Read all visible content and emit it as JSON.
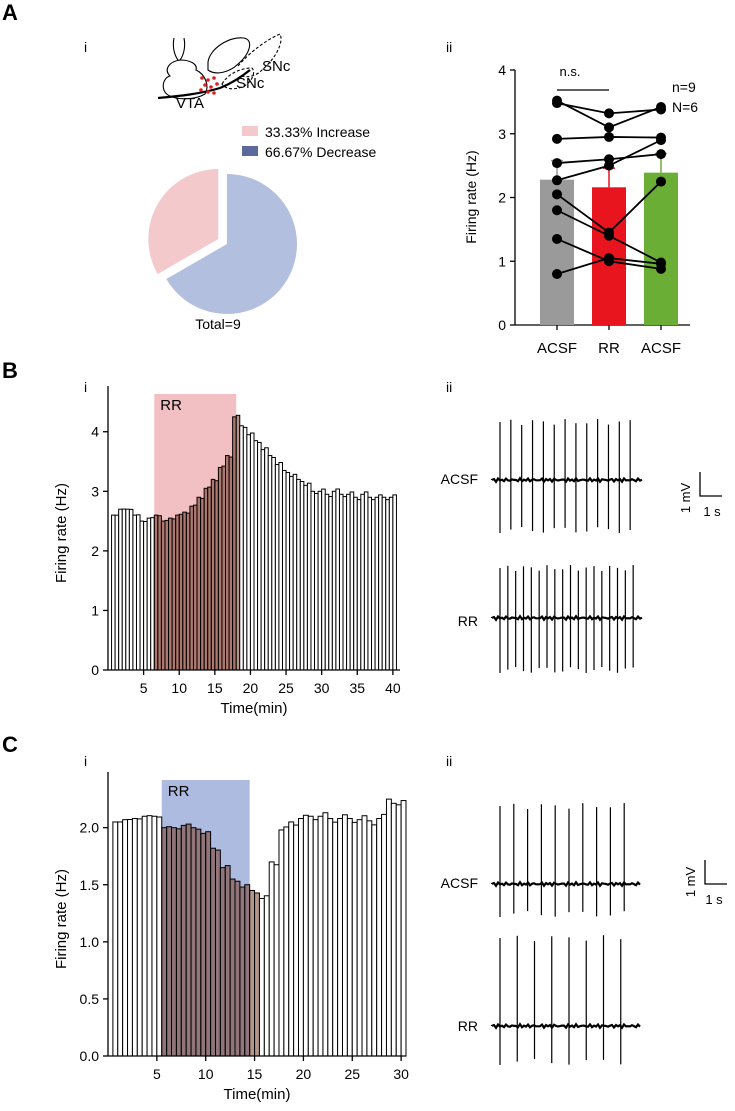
{
  "panels": {
    "A": {
      "letter": "A",
      "sub_i": "i",
      "sub_ii": "ii"
    },
    "B": {
      "letter": "B",
      "sub_i": "i",
      "sub_ii": "ii"
    },
    "C": {
      "letter": "C",
      "sub_i": "i",
      "sub_ii": "ii"
    }
  },
  "brain": {
    "vta": "VTA",
    "snc1": "SNc",
    "snc2": "SNc"
  },
  "colors": {
    "increase": "#f4c9cc",
    "decrease": "#b3bfdf",
    "acsf": "#9a9a9a",
    "rr": "#e8141e",
    "acsf2": "#6aae35",
    "shade_b": "#f2c0c3",
    "shade_c": "#aebbe0"
  },
  "traces": {
    "B": {
      "acsf_label": "ACSF",
      "rr_label": "RR",
      "scale_v": "1 mV",
      "scale_t": "1 s",
      "acsf_spikes": 13,
      "rr_spikes": 18
    },
    "C": {
      "acsf_label": "ACSF",
      "rr_label": "RR",
      "scale_v": "1 mV",
      "scale_t": "1 s",
      "acsf_spikes": 10,
      "rr_spikes": 8
    }
  },
  "chart_data": [
    {
      "id": "A-i",
      "type": "pie",
      "labels": [
        "Increase",
        "Decrease"
      ],
      "values": [
        33.33,
        66.67
      ],
      "legend": [
        "33.33%  Increase",
        "66.67%  Decrease"
      ],
      "footer": "Total=9"
    },
    {
      "id": "A-ii",
      "type": "bar",
      "categories": [
        "ACSF",
        "RR",
        "ACSF"
      ],
      "values": [
        2.28,
        2.16,
        2.39
      ],
      "errors": [
        0.3,
        0.3,
        0.3
      ],
      "individual": [
        [
          3.52,
          3.1,
          3.42
        ],
        [
          3.48,
          3.32,
          3.38
        ],
        [
          2.92,
          2.95,
          2.94
        ],
        [
          2.54,
          2.6,
          2.68
        ],
        [
          2.27,
          2.5,
          2.9
        ],
        [
          2.05,
          1.45,
          2.25
        ],
        [
          1.8,
          1.4,
          0.98
        ],
        [
          1.35,
          1.0,
          0.88
        ],
        [
          0.8,
          1.05,
          0.96
        ]
      ],
      "significance": "n.s.",
      "annotation": [
        "n=9",
        "N=6"
      ],
      "ylabel": "Firing rate (Hz)",
      "ylim": [
        0,
        4
      ],
      "yticks": [
        "0",
        "1",
        "2",
        "3",
        "4"
      ]
    },
    {
      "id": "B-i",
      "type": "bar",
      "x": [
        1,
        2,
        3,
        4,
        5,
        6,
        7,
        8,
        9,
        10,
        11,
        12,
        13,
        14,
        15,
        16,
        17,
        18,
        19,
        20,
        21,
        22,
        23,
        24,
        25,
        26,
        27,
        28,
        29,
        30,
        31,
        32,
        33,
        34,
        35,
        36,
        37,
        38,
        39,
        40
      ],
      "values": [
        2.6,
        2.7,
        2.7,
        2.6,
        2.5,
        2.55,
        2.6,
        2.5,
        2.55,
        2.6,
        2.65,
        2.75,
        2.9,
        3.05,
        3.2,
        3.4,
        3.6,
        4.25,
        4.1,
        3.95,
        3.85,
        3.7,
        3.6,
        3.45,
        3.35,
        3.25,
        3.2,
        3.1,
        3.0,
        3.0,
        2.95,
        3.0,
        2.95,
        2.95,
        2.9,
        2.95,
        2.9,
        2.9,
        2.9,
        2.9
      ],
      "shade": {
        "from": 6.5,
        "to": 18,
        "label": "RR"
      },
      "xlabel": "Time(min)",
      "ylabel": "Firing rate (Hz)",
      "xlim": [
        0,
        41
      ],
      "ylim": [
        0,
        4.6
      ],
      "xticks": [
        "5",
        "10",
        "15",
        "20",
        "25",
        "30",
        "35",
        "40"
      ],
      "yticks": [
        "0",
        "1",
        "2",
        "3",
        "4"
      ]
    },
    {
      "id": "C-i",
      "type": "bar",
      "x": [
        1,
        2,
        3,
        4,
        5,
        6,
        7,
        8,
        9,
        10,
        11,
        12,
        13,
        14,
        15,
        16,
        17,
        18,
        19,
        20,
        21,
        22,
        23,
        24,
        25,
        26,
        27,
        28,
        29,
        30
      ],
      "values": [
        2.05,
        2.07,
        2.08,
        2.1,
        2.1,
        2.0,
        2.0,
        2.02,
        2.0,
        1.95,
        1.82,
        1.65,
        1.55,
        1.48,
        1.45,
        1.38,
        1.7,
        1.98,
        2.05,
        2.08,
        2.1,
        2.1,
        2.08,
        2.08,
        2.08,
        2.07,
        2.06,
        2.08,
        2.25,
        2.2
      ],
      "shade": {
        "from": 5.5,
        "to": 14.5,
        "label": "RR"
      },
      "xlabel": "Time(min)",
      "ylabel": "Firing rate (Hz)",
      "xlim": [
        0,
        30.5
      ],
      "ylim": [
        0,
        2.4
      ],
      "xticks": [
        "5",
        "10",
        "15",
        "20",
        "25",
        "30"
      ],
      "yticks": [
        "0.0",
        "0.5",
        "1.0",
        "1.5",
        "2.0"
      ]
    }
  ]
}
